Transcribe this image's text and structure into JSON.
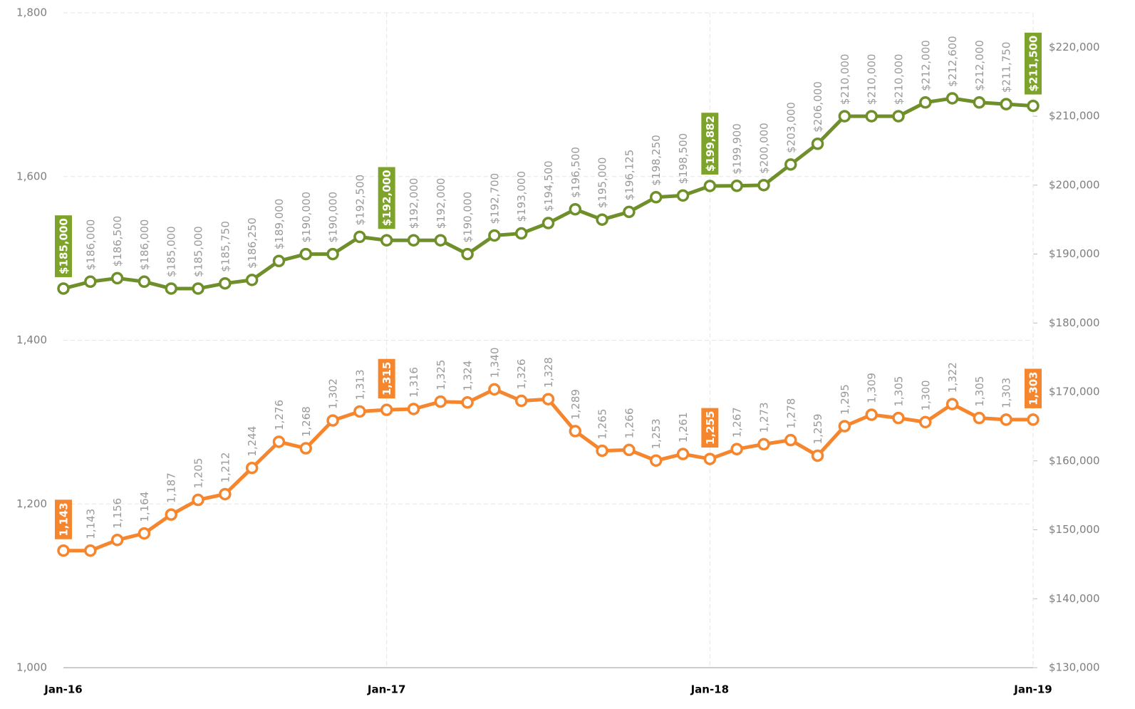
{
  "chart_data": {
    "type": "line",
    "categories": [
      "Jan-16",
      null,
      null,
      null,
      null,
      null,
      null,
      null,
      null,
      null,
      null,
      null,
      "Jan-17",
      null,
      null,
      null,
      null,
      null,
      null,
      null,
      null,
      null,
      null,
      null,
      "Jan-18",
      null,
      null,
      null,
      null,
      null,
      null,
      null,
      null,
      null,
      null,
      null,
      "Jan-19"
    ],
    "series": [
      {
        "color": "#f5862e",
        "axis": "y",
        "values": [
          1143,
          1143,
          1156,
          1164,
          1187,
          1205,
          1212,
          1244,
          1276,
          1268,
          1302,
          1313,
          1315,
          1316,
          1325,
          1324,
          1340,
          1326,
          1328,
          1289,
          1265,
          1266,
          1253,
          1261,
          1255,
          1267,
          1273,
          1278,
          1259,
          1295,
          1309,
          1305,
          1300,
          1322,
          1305,
          1303,
          1303
        ],
        "value_labels": [
          "1,143",
          "1,143",
          "1,156",
          "1,164",
          "1,187",
          "1,205",
          "1,212",
          "1,244",
          "1,276",
          "1,268",
          "1,302",
          "1,313",
          "1,315",
          "1,316",
          "1,325",
          "1,324",
          "1,340",
          "1,326",
          "1,328",
          "1,289",
          "1,265",
          "1,266",
          "1,253",
          "1,261",
          "1,255",
          "1,267",
          "1,273",
          "1,278",
          "1,259",
          "1,295",
          "1,309",
          "1,305",
          "1,300",
          "1,322",
          "1,305",
          "1,303",
          "1,303"
        ]
      },
      {
        "color": "#6f8f2b",
        "axis": "y2",
        "values": [
          185000,
          186000,
          186500,
          186000,
          185000,
          185000,
          185750,
          186250,
          189000,
          190000,
          190000,
          192500,
          192000,
          192000,
          192000,
          190000,
          192700,
          193000,
          194500,
          196500,
          195000,
          196125,
          198250,
          198500,
          199882,
          199900,
          200000,
          203000,
          206000,
          210000,
          210000,
          210000,
          212000,
          212600,
          212000,
          211750,
          211500
        ],
        "value_labels": [
          "$185,000",
          "$186,000",
          "$186,500",
          "$186,000",
          "$185,000",
          "$185,000",
          "$185,750",
          "$186,250",
          "$189,000",
          "$190,000",
          "$190,000",
          "$192,500",
          "$192,000",
          "$192,000",
          "$192,000",
          "$190,000",
          "$192,700",
          "$193,000",
          "$194,500",
          "$196,500",
          "$195,000",
          "$196,125",
          "$198,250",
          "$198,500",
          "$199,882",
          "$199,900",
          "$200,000",
          "$203,000",
          "$206,000",
          "$210,000",
          "$210,000",
          "$210,000",
          "$212,000",
          "$212,600",
          "$212,000",
          "$211,750",
          "$211,500"
        ]
      }
    ],
    "ylim": [
      1000,
      1800
    ],
    "yticks": [
      {
        "value": 1000,
        "label": "1,000"
      },
      {
        "value": 1200,
        "label": "1,200"
      },
      {
        "value": 1400,
        "label": "1,400"
      },
      {
        "value": 1600,
        "label": "1,600"
      },
      {
        "value": 1800,
        "label": "1,800"
      }
    ],
    "y2lim": [
      130000,
      225000
    ],
    "y2ticks": [
      {
        "value": 130000,
        "label": "$130,000"
      },
      {
        "value": 140000,
        "label": "$140,000"
      },
      {
        "value": 150000,
        "label": "$150,000"
      },
      {
        "value": 160000,
        "label": "$160,000"
      },
      {
        "value": 170000,
        "label": "$170,000"
      },
      {
        "value": 180000,
        "label": "$180,000"
      },
      {
        "value": 190000,
        "label": "$190,000"
      },
      {
        "value": 200000,
        "label": "$200,000"
      },
      {
        "value": 210000,
        "label": "$210,000"
      },
      {
        "value": 220000,
        "label": "$220,000"
      }
    ],
    "grid": true
  }
}
